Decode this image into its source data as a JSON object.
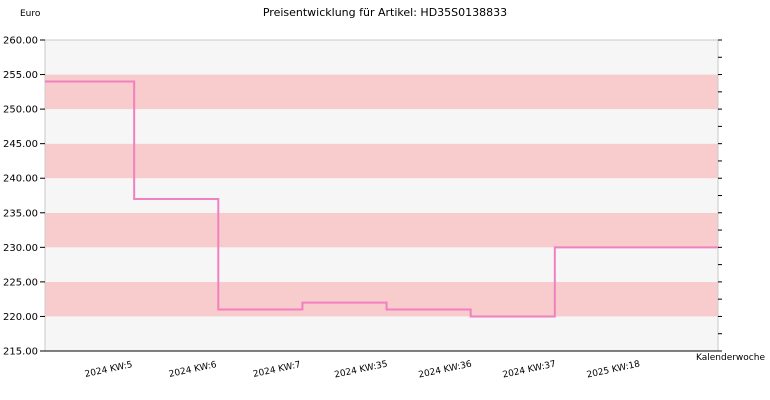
{
  "chart_data": {
    "type": "line",
    "title": "Preisentwicklung für Artikel: HD35S0138833",
    "ylabel": "Euro",
    "xlabel": "Kalenderwoche",
    "categories": [
      "2024 KW:5",
      "2024 KW:6",
      "2024 KW:7",
      "2024 KW:35",
      "2024 KW:36",
      "2024 KW:37",
      "2025 KW:18"
    ],
    "series": [
      {
        "values": [
          254.0,
          237.0,
          221.0,
          222.0,
          221.0,
          220.0,
          230.0
        ]
      }
    ],
    "ylim": [
      215,
      260
    ],
    "yticks": [
      "215.00",
      "220.00",
      "225.00",
      "230.00",
      "235.00",
      "240.00",
      "245.00",
      "250.00",
      "255.00",
      "260.00"
    ],
    "step": true,
    "grid": "horizontal bands",
    "colors": {
      "line": "#f080c0",
      "band_dark": "#f8cccc",
      "band_light": "#f6f6f6"
    }
  }
}
